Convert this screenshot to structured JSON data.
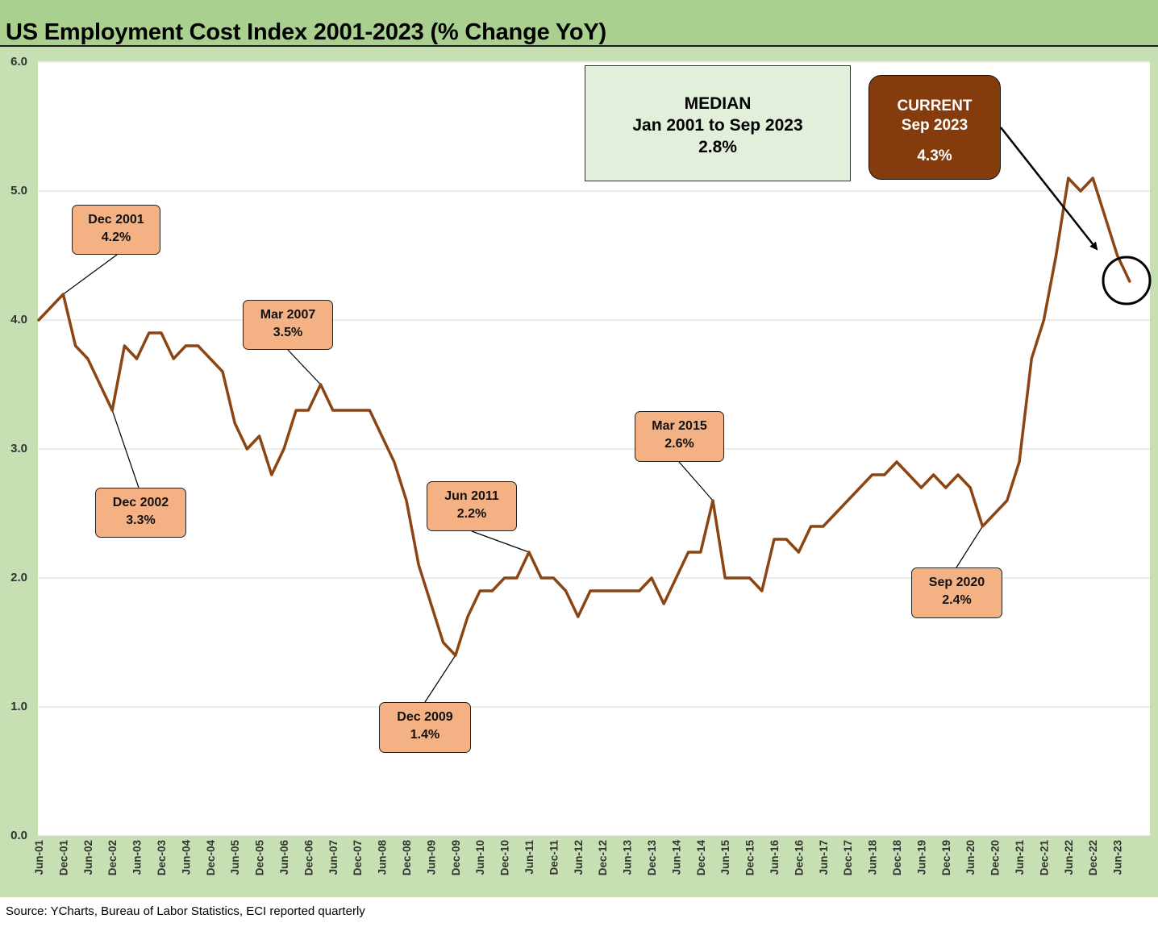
{
  "title": "US Employment Cost Index 2001-2023 (% Change YoY)",
  "source": "Source: YCharts, Bureau of Labor Statistics, ECI reported quarterly",
  "colors": {
    "title_band": "#a9d08e",
    "frame": "#c6e0b4",
    "line": "#8b4513",
    "callout_fill": "#f4b183",
    "median_fill": "#e2efda",
    "current_fill": "#843c0c"
  },
  "median_box": {
    "line1": "MEDIAN",
    "line2": "Jan 2001 to Sep 2023",
    "line3": "2.8%"
  },
  "current_box": {
    "line1": "CURRENT",
    "line2": "Sep 2023",
    "line3": "4.3%"
  },
  "callouts": [
    {
      "date": "Dec 2001",
      "value": "4.2%"
    },
    {
      "date": "Dec 2002",
      "value": "3.3%"
    },
    {
      "date": "Mar 2007",
      "value": "3.5%"
    },
    {
      "date": "Dec 2009",
      "value": "1.4%"
    },
    {
      "date": "Jun 2011",
      "value": "2.2%"
    },
    {
      "date": "Mar 2015",
      "value": "2.6%"
    },
    {
      "date": "Sep 2020",
      "value": "2.4%"
    }
  ],
  "chart_data": {
    "type": "line",
    "title": "US Employment Cost Index 2001-2023 (% Change YoY)",
    "xlabel": "",
    "ylabel": "",
    "ylim": [
      0,
      6
    ],
    "yticks": [
      "0.0",
      "1.0",
      "2.0",
      "3.0",
      "4.0",
      "5.0",
      "6.0"
    ],
    "x_tick_labels": [
      "Jun-01",
      "Dec-01",
      "Jun-02",
      "Dec-02",
      "Jun-03",
      "Dec-03",
      "Jun-04",
      "Dec-04",
      "Jun-05",
      "Dec-05",
      "Jun-06",
      "Dec-06",
      "Jun-07",
      "Dec-07",
      "Jun-08",
      "Dec-08",
      "Jun-09",
      "Dec-09",
      "Jun-10",
      "Dec-10",
      "Jun-11",
      "Dec-11",
      "Jun-12",
      "Dec-12",
      "Jun-13",
      "Dec-13",
      "Jun-14",
      "Dec-14",
      "Jun-15",
      "Dec-15",
      "Jun-16",
      "Dec-16",
      "Jun-17",
      "Dec-17",
      "Jun-18",
      "Dec-18",
      "Jun-19",
      "Dec-19",
      "Jun-20",
      "Dec-20",
      "Jun-21",
      "Dec-21",
      "Jun-22",
      "Dec-22",
      "Jun-23"
    ],
    "grid": true,
    "legend": "none",
    "x": [
      "Jun-01",
      "Sep-01",
      "Dec-01",
      "Mar-02",
      "Jun-02",
      "Sep-02",
      "Dec-02",
      "Mar-03",
      "Jun-03",
      "Sep-03",
      "Dec-03",
      "Mar-04",
      "Jun-04",
      "Sep-04",
      "Dec-04",
      "Mar-05",
      "Jun-05",
      "Sep-05",
      "Dec-05",
      "Mar-06",
      "Jun-06",
      "Sep-06",
      "Dec-06",
      "Mar-07",
      "Jun-07",
      "Sep-07",
      "Dec-07",
      "Mar-08",
      "Jun-08",
      "Sep-08",
      "Dec-08",
      "Mar-09",
      "Jun-09",
      "Sep-09",
      "Dec-09",
      "Mar-10",
      "Jun-10",
      "Sep-10",
      "Dec-10",
      "Mar-11",
      "Jun-11",
      "Sep-11",
      "Dec-11",
      "Mar-12",
      "Jun-12",
      "Sep-12",
      "Dec-12",
      "Mar-13",
      "Jun-13",
      "Sep-13",
      "Dec-13",
      "Mar-14",
      "Jun-14",
      "Sep-14",
      "Dec-14",
      "Mar-15",
      "Jun-15",
      "Sep-15",
      "Dec-15",
      "Mar-16",
      "Jun-16",
      "Sep-16",
      "Dec-16",
      "Mar-17",
      "Jun-17",
      "Sep-17",
      "Dec-17",
      "Mar-18",
      "Jun-18",
      "Sep-18",
      "Dec-18",
      "Mar-19",
      "Jun-19",
      "Sep-19",
      "Dec-19",
      "Mar-20",
      "Jun-20",
      "Sep-20",
      "Dec-20",
      "Mar-21",
      "Jun-21",
      "Sep-21",
      "Dec-21",
      "Mar-22",
      "Jun-22",
      "Sep-22",
      "Dec-22",
      "Mar-23",
      "Jun-23",
      "Sep-23"
    ],
    "series": [
      {
        "values": [
          4.0,
          4.1,
          4.2,
          3.8,
          3.7,
          3.5,
          3.3,
          3.8,
          3.7,
          3.9,
          3.9,
          3.7,
          3.8,
          3.8,
          3.7,
          3.6,
          3.2,
          3.0,
          3.1,
          2.8,
          3.0,
          3.3,
          3.3,
          3.5,
          3.3,
          3.3,
          3.3,
          3.3,
          3.1,
          2.9,
          2.6,
          2.1,
          1.8,
          1.5,
          1.4,
          1.7,
          1.9,
          1.9,
          2.0,
          2.0,
          2.2,
          2.0,
          2.0,
          1.9,
          1.7,
          1.9,
          1.9,
          1.9,
          1.9,
          1.9,
          2.0,
          1.8,
          2.0,
          2.2,
          2.2,
          2.6,
          2.0,
          2.0,
          2.0,
          1.9,
          2.3,
          2.3,
          2.2,
          2.4,
          2.4,
          2.5,
          2.6,
          2.7,
          2.8,
          2.8,
          2.9,
          2.8,
          2.7,
          2.8,
          2.7,
          2.8,
          2.7,
          2.4,
          2.5,
          2.6,
          2.9,
          3.7,
          4.0,
          4.5,
          5.1,
          5.0,
          5.1,
          4.8,
          4.5,
          4.3
        ]
      }
    ]
  }
}
